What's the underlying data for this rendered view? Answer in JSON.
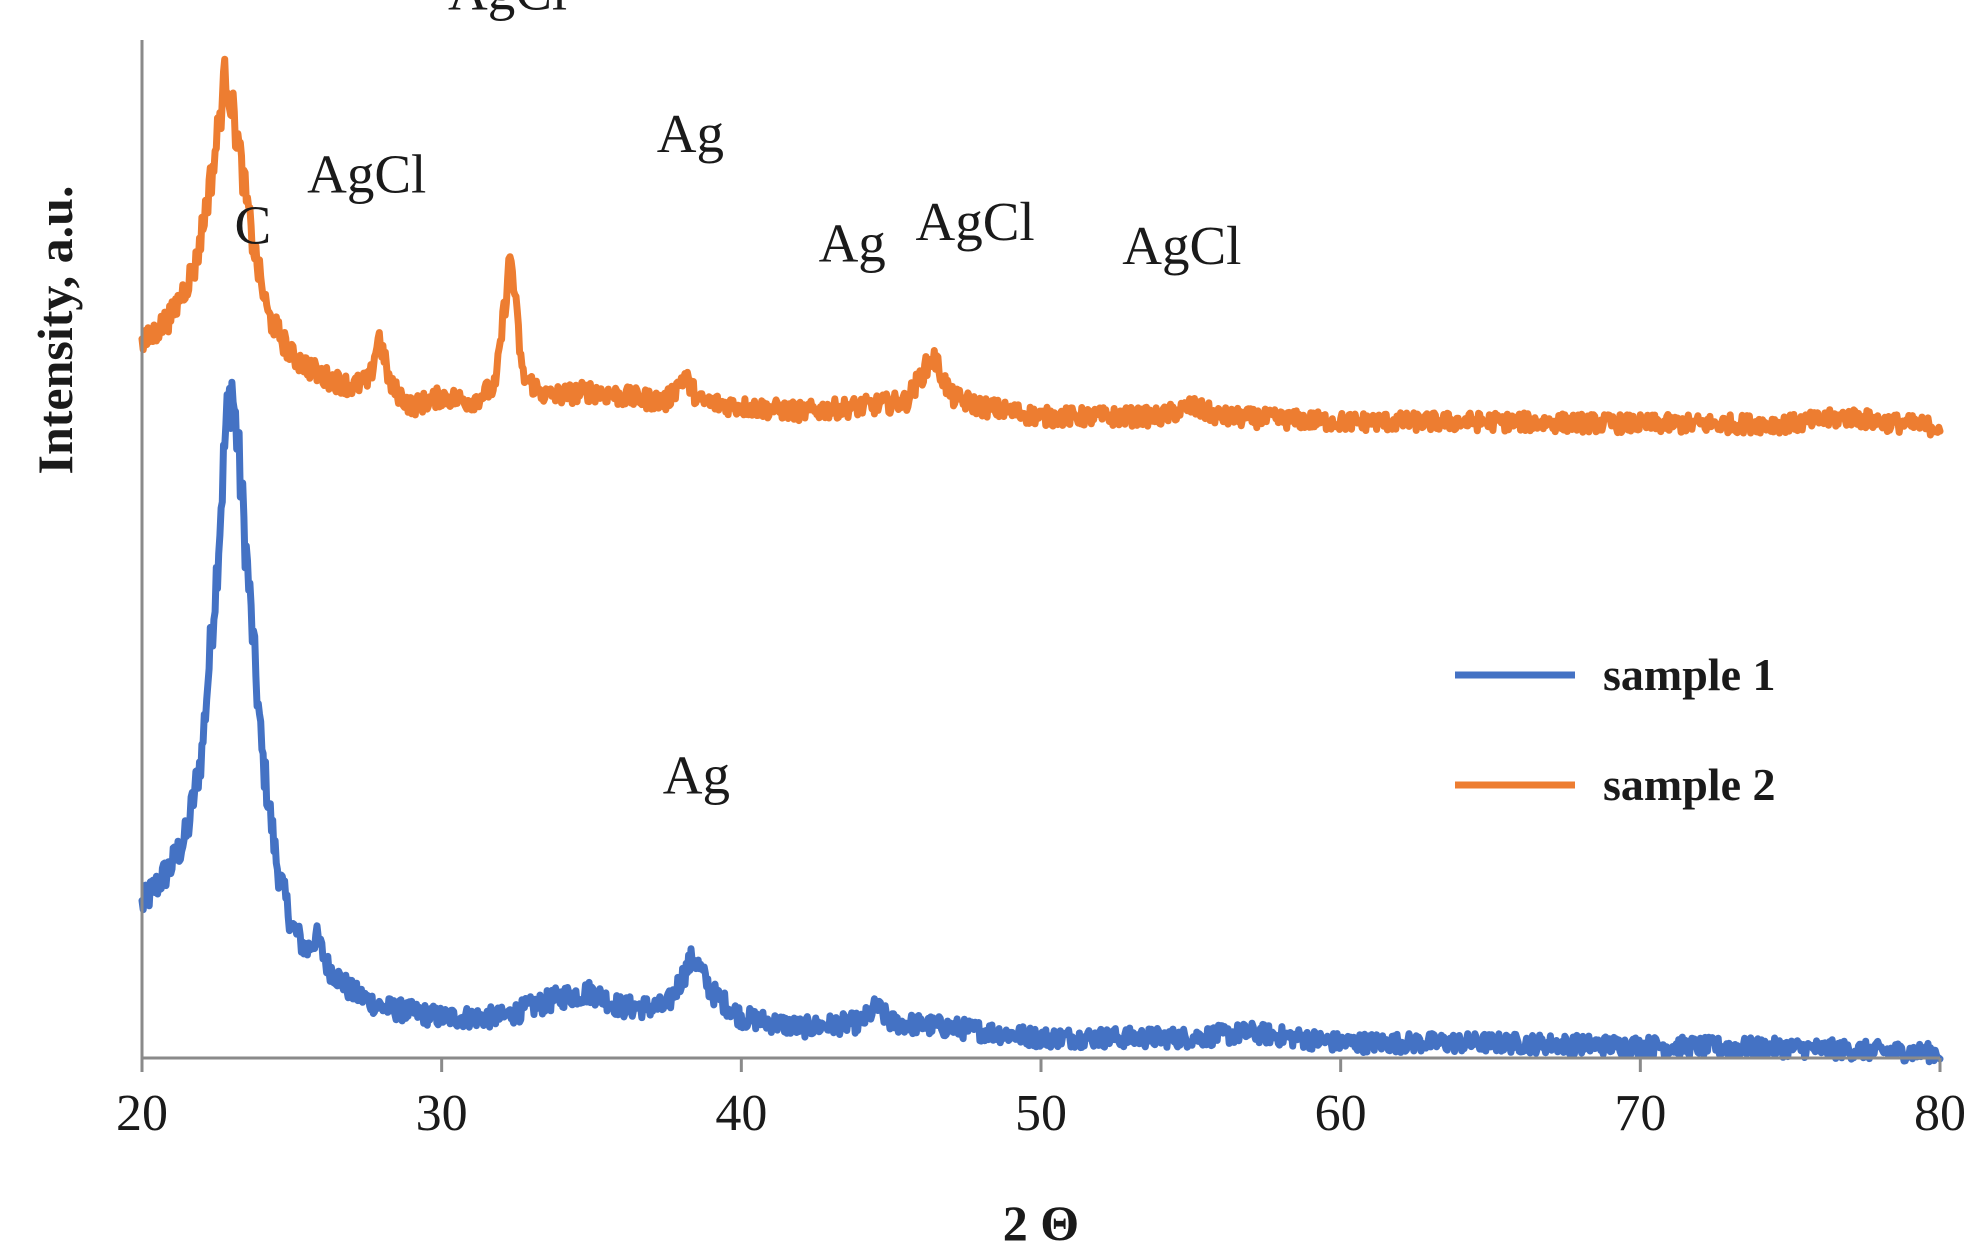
{
  "chart_data": {
    "type": "line",
    "xlabel": "2 Θ",
    "ylabel": "Intensity, a.u.",
    "xlim": [
      20,
      80
    ],
    "ylim": [
      0,
      100
    ],
    "xticks": [
      20,
      30,
      40,
      50,
      60,
      70,
      80
    ],
    "yticks_shown": false,
    "grid": false,
    "legend_position": "right-middle",
    "series": [
      {
        "name": "sample 1",
        "color": "#4472C4",
        "anchors": [
          [
            20,
            15
          ],
          [
            21,
            19
          ],
          [
            21.5,
            22
          ],
          [
            22,
            30
          ],
          [
            22.5,
            48
          ],
          [
            22.8,
            62
          ],
          [
            23,
            66
          ],
          [
            23.2,
            60
          ],
          [
            23.6,
            45
          ],
          [
            24,
            30
          ],
          [
            24.5,
            19
          ],
          [
            25,
            13
          ],
          [
            25.5,
            10.5
          ],
          [
            25.8,
            12
          ],
          [
            26.2,
            9
          ],
          [
            27,
            6.5
          ],
          [
            28,
            5
          ],
          [
            30,
            4
          ],
          [
            32,
            4
          ],
          [
            34,
            6
          ],
          [
            35,
            6.5
          ],
          [
            36,
            5
          ],
          [
            37.5,
            5
          ],
          [
            38.4,
            10
          ],
          [
            39,
            6.5
          ],
          [
            40,
            4
          ],
          [
            42,
            3
          ],
          [
            44,
            3.5
          ],
          [
            44.5,
            5
          ],
          [
            45,
            3.5
          ],
          [
            47,
            3
          ],
          [
            50,
            2
          ],
          [
            55,
            2
          ],
          [
            57,
            2.5
          ],
          [
            60,
            1.5
          ],
          [
            65,
            1.5
          ],
          [
            70,
            1.2
          ],
          [
            75,
            1
          ],
          [
            80,
            0.5
          ]
        ]
      },
      {
        "name": "sample 2",
        "color": "#ED7D31",
        "anchors": [
          [
            20,
            70
          ],
          [
            21,
            73
          ],
          [
            21.8,
            78
          ],
          [
            22.4,
            88
          ],
          [
            22.8,
            97
          ],
          [
            23.2,
            90
          ],
          [
            23.7,
            80
          ],
          [
            24.2,
            73
          ],
          [
            25,
            69
          ],
          [
            26,
            67
          ],
          [
            27,
            66
          ],
          [
            27.6,
            66.5
          ],
          [
            27.9,
            71
          ],
          [
            28.3,
            66
          ],
          [
            29,
            64
          ],
          [
            30,
            65
          ],
          [
            31,
            64.5
          ],
          [
            31.8,
            66
          ],
          [
            32.3,
            79
          ],
          [
            32.7,
            67
          ],
          [
            33.5,
            65
          ],
          [
            35,
            65.5
          ],
          [
            36,
            65
          ],
          [
            37.5,
            64.5
          ],
          [
            38.1,
            67
          ],
          [
            38.6,
            64.5
          ],
          [
            40,
            64
          ],
          [
            42,
            63.5
          ],
          [
            44,
            64
          ],
          [
            45.5,
            64.5
          ],
          [
            46.4,
            69
          ],
          [
            47,
            65
          ],
          [
            48,
            64
          ],
          [
            50,
            63
          ],
          [
            54,
            63
          ],
          [
            55,
            64
          ],
          [
            56,
            63
          ],
          [
            60,
            62.5
          ],
          [
            65,
            62.5
          ],
          [
            70,
            62.3
          ],
          [
            75,
            62.3
          ],
          [
            77,
            63
          ],
          [
            78,
            62.5
          ],
          [
            80,
            62
          ]
        ]
      }
    ],
    "annotations": [
      {
        "text": "C",
        "series": "sample 2",
        "x": 22.3
      },
      {
        "text": "AgCl",
        "series": "sample 2",
        "x": 27.5
      },
      {
        "text": "AgCl",
        "series": "sample 2",
        "x": 32.2
      },
      {
        "text": "Ag",
        "series": "sample 2",
        "x": 38.3
      },
      {
        "text": "Ag",
        "series": "sample 2",
        "x": 43.7
      },
      {
        "text": "AgCl",
        "series": "sample 2",
        "x": 47.8
      },
      {
        "text": "AgCl",
        "series": "sample 2",
        "x": 54.7
      },
      {
        "text": "C",
        "series": "sample 1",
        "x": 23.7
      },
      {
        "text": "Ag",
        "series": "sample 1",
        "x": 38.5
      }
    ]
  }
}
